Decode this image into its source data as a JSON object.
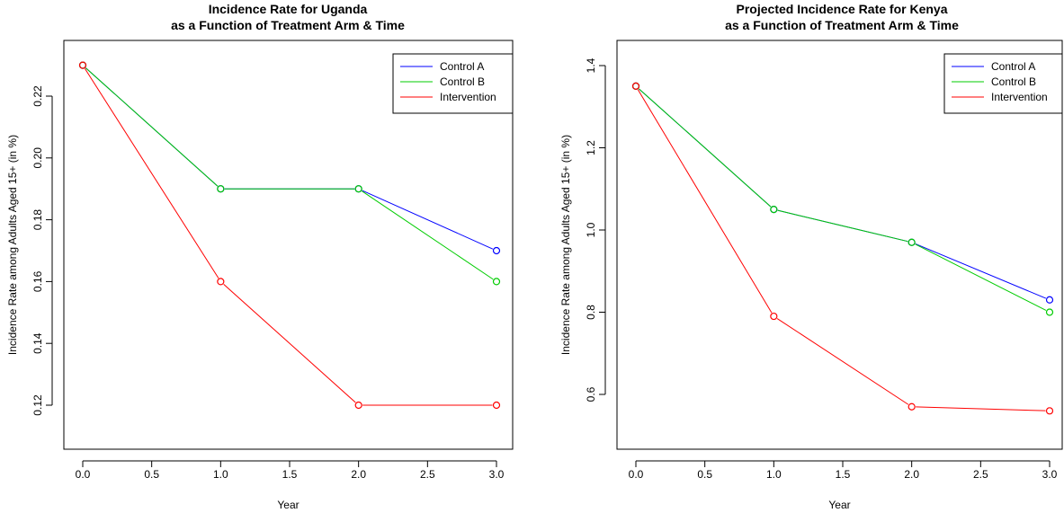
{
  "chart_data": [
    {
      "type": "line",
      "title_lines": [
        "Incidence Rate for Uganda",
        "as a Function of Treatment Arm & Time"
      ],
      "xlabel": "Year",
      "ylabel": "Incidence Rate among Adults Aged 15+ (in %)",
      "xlim": [
        0,
        3
      ],
      "ylim": [
        0.105,
        0.23
      ],
      "xticks": [
        "0.0",
        "0.5",
        "1.0",
        "1.5",
        "2.0",
        "2.5",
        "3.0"
      ],
      "yticks": [
        "0.12",
        "0.14",
        "0.16",
        "0.18",
        "0.20",
        "0.22"
      ],
      "legend_position": "top-right",
      "x": [
        0,
        1,
        2,
        3
      ],
      "series": [
        {
          "name": "Control A",
          "color": "#0000ff",
          "values": [
            0.23,
            0.19,
            0.19,
            0.17
          ]
        },
        {
          "name": "Control B",
          "color": "#00cc00",
          "values": [
            0.23,
            0.19,
            0.19,
            0.16
          ]
        },
        {
          "name": "Intervention",
          "color": "#ff0000",
          "values": [
            0.23,
            0.16,
            0.12,
            0.12
          ]
        }
      ]
    },
    {
      "type": "line",
      "title_lines": [
        "Projected Incidence Rate for Kenya",
        "as a Function of Treatment Arm & Time"
      ],
      "xlabel": "Year",
      "ylabel": "Incidence Rate among Adults Aged 15+ (in %)",
      "xlim": [
        0,
        3
      ],
      "ylim": [
        0.52,
        1.35
      ],
      "xticks": [
        "0.0",
        "0.5",
        "1.0",
        "1.5",
        "2.0",
        "2.5",
        "3.0"
      ],
      "yticks": [
        "0.6",
        "0.8",
        "1.0",
        "1.2",
        "1.4"
      ],
      "legend_position": "top-right",
      "x": [
        0,
        1,
        2,
        3
      ],
      "series": [
        {
          "name": "Control A",
          "color": "#0000ff",
          "values": [
            1.35,
            1.05,
            0.97,
            0.83
          ]
        },
        {
          "name": "Control B",
          "color": "#00cc00",
          "values": [
            1.35,
            1.05,
            0.97,
            0.8
          ]
        },
        {
          "name": "Intervention",
          "color": "#ff0000",
          "values": [
            1.35,
            0.79,
            0.57,
            0.56
          ]
        }
      ]
    }
  ]
}
